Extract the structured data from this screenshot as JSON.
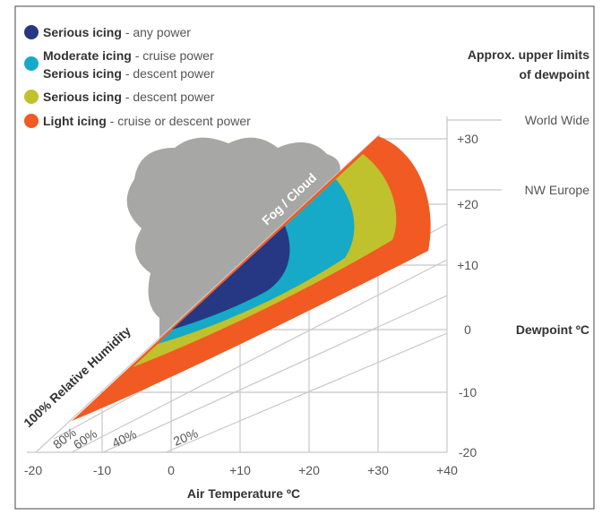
{
  "legend": [
    {
      "lines": [
        {
          "bold": "Serious icing",
          "text": "- any power"
        }
      ]
    },
    {
      "lines": [
        {
          "bold": "Moderate icing",
          "text": "- cruise power"
        },
        {
          "bold": "Serious icing",
          "text": "- descent power"
        }
      ]
    },
    {
      "lines": [
        {
          "bold": "Serious icing",
          "text": "- descent power"
        }
      ]
    },
    {
      "lines": [
        {
          "bold": "Light icing",
          "text": "- cruise or descent power"
        }
      ]
    }
  ],
  "right_title": [
    "Approx. upper limits",
    "of dewpoint"
  ],
  "limits": [
    "World Wide",
    "NW Europe"
  ],
  "y_axis": {
    "title": "Dewpoint ºC",
    "ticks": [
      "+30",
      "+20",
      "+10",
      "0",
      "-10",
      "-20"
    ]
  },
  "x_axis": {
    "title": "Air Temperature ºC",
    "ticks": [
      "-20",
      "-10",
      "0",
      "+10",
      "+20",
      "+30",
      "+40"
    ]
  },
  "region_label": "Fog / Cloud",
  "saturation_label": "100% Relative Humidity",
  "humidity_labels": [
    "80%",
    "60%",
    "40%",
    "20%"
  ]
}
